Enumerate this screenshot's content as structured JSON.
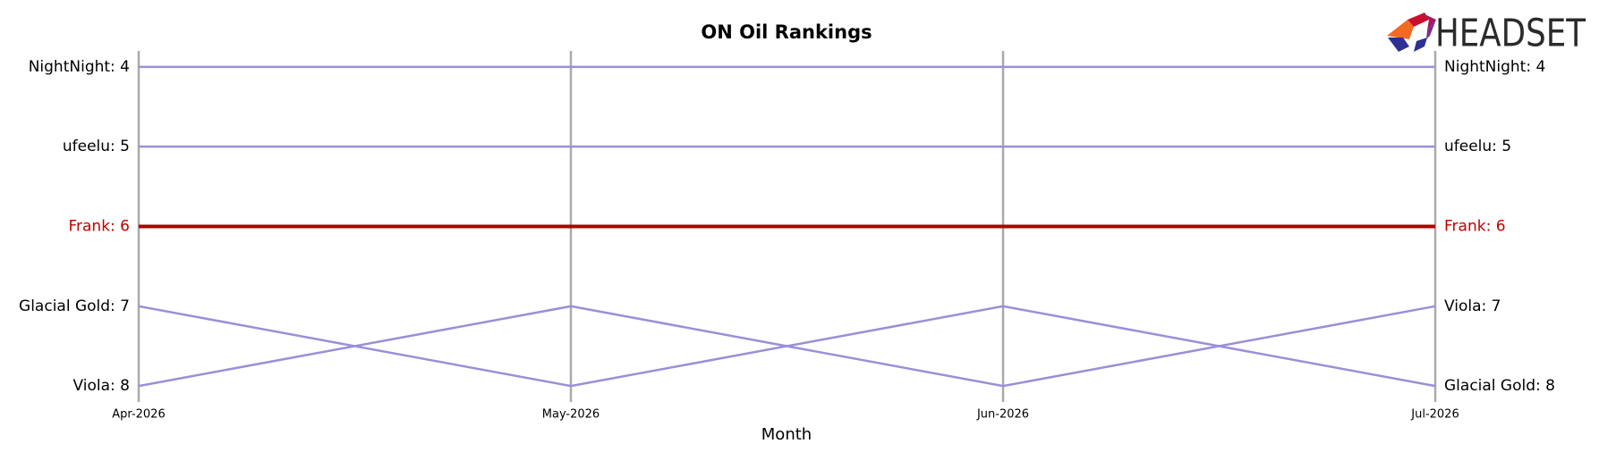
{
  "chart_data": {
    "type": "bump",
    "title": "ON Oil Rankings",
    "xlabel": "Month",
    "logo": "HEADSET",
    "categories": [
      "Apr-2026",
      "May-2026",
      "Jun-2026",
      "Jul-2026"
    ],
    "ylim": [
      3.8,
      8.2
    ],
    "invert_y": true,
    "series": [
      {
        "name": "NightNight",
        "color": "#9b8fd8",
        "label_color": "#000000",
        "values": [
          4,
          4,
          4,
          4
        ],
        "value_labels": [
          "NightNight: 4",
          null,
          null,
          "NightNight: 4"
        ]
      },
      {
        "name": "ufeelu",
        "color": "#9b8fd8",
        "label_color": "#000000",
        "values": [
          5,
          5,
          5,
          5
        ],
        "value_labels": [
          "ufeelu: 5",
          null,
          null,
          "ufeelu: 5"
        ]
      },
      {
        "name": "Frank",
        "color": "#b00000",
        "label_color": "#c00000",
        "highlight": true,
        "values": [
          6,
          6,
          6,
          6
        ],
        "value_labels": [
          "Frank: 6",
          null,
          null,
          "Frank: 6"
        ]
      },
      {
        "name": "Glacial Gold",
        "color": "#9b8fd8",
        "label_color": "#000000",
        "values": [
          7,
          8,
          7,
          8
        ],
        "value_labels": [
          "Glacial Gold: 7",
          null,
          null,
          "Glacial Gold: 8"
        ]
      },
      {
        "name": "Viola",
        "color": "#9b8fd8",
        "label_color": "#000000",
        "values": [
          8,
          7,
          8,
          7
        ],
        "value_labels": [
          "Viola: 8",
          null,
          null,
          "Viola: 7"
        ]
      }
    ]
  }
}
